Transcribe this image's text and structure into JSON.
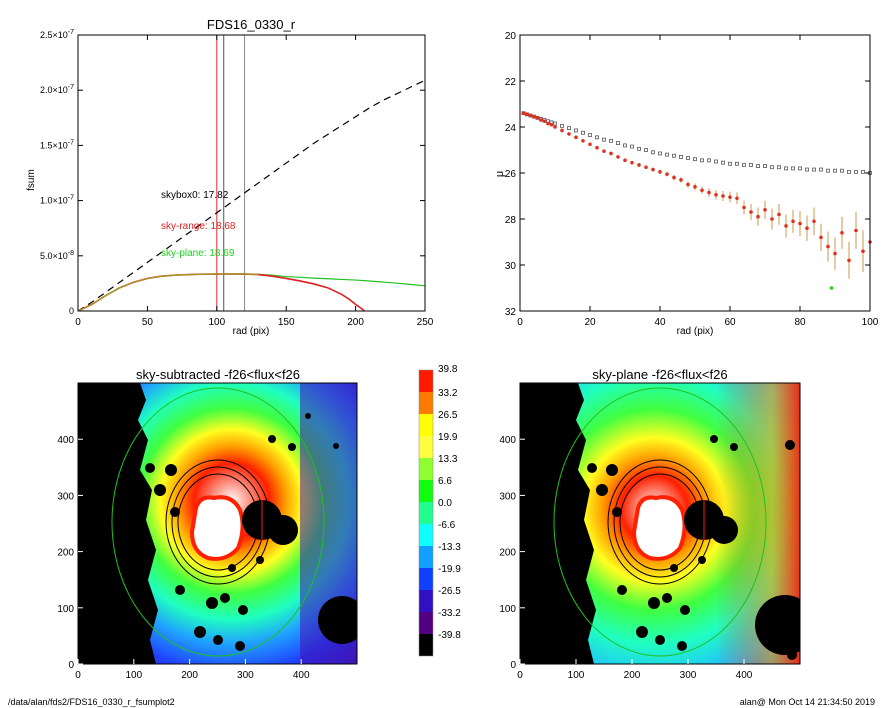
{
  "footer": {
    "path": "/data/alan/fds2/FDS16_0330_r_fsumplot2",
    "user_time": "alan@  Mon Oct 14 21:34:50 2019"
  },
  "chart_data": [
    {
      "type": "line",
      "title": "FDS16_0330_r",
      "xlabel": "rad (pix)",
      "ylabel": "fsum",
      "xlim": [
        0,
        250
      ],
      "ylim": [
        0,
        2.5e-07
      ],
      "xticks": [
        "0",
        "50",
        "100",
        "150",
        "200",
        "250"
      ],
      "yticks": [
        {
          "v": 0,
          "label": "0"
        },
        {
          "v": 5e-08,
          "label": "5.0×10",
          "exp": "-8"
        },
        {
          "v": 1e-07,
          "label": "1.0×10",
          "exp": "-7"
        },
        {
          "v": 1.5e-07,
          "label": "1.5×10",
          "exp": "-7"
        },
        {
          "v": 2e-07,
          "label": "2.0×10",
          "exp": "-7"
        },
        {
          "v": 2.5e-07,
          "label": "2.5×10",
          "exp": "-7"
        }
      ],
      "vlines": [
        {
          "x": 100,
          "color": "#e03030"
        },
        {
          "x": 105,
          "color": "#555555"
        },
        {
          "x": 120,
          "color": "#888888"
        }
      ],
      "annotations": [
        {
          "text": "skybox0: 17.82",
          "color": "#000000"
        },
        {
          "text": "sky-range: 18.68",
          "color": "#e02020"
        },
        {
          "text": "sky-plane: 18.69",
          "color": "#20d020"
        }
      ],
      "series": [
        {
          "color": "#000000",
          "style": "dashed",
          "x": [
            0,
            10,
            20,
            30,
            40,
            50,
            60,
            70,
            80,
            90,
            100,
            110,
            120,
            130,
            140,
            150,
            160,
            170,
            180,
            190,
            200,
            210,
            220,
            230,
            240,
            250
          ],
          "y": [
            0,
            8e-09,
            1.7e-08,
            2.6e-08,
            3.5e-08,
            4.4e-08,
            5.3e-08,
            6.2e-08,
            7.1e-08,
            8e-08,
            8.9e-08,
            9.8e-08,
            1.07e-07,
            1.16e-07,
            1.25e-07,
            1.34e-07,
            1.43e-07,
            1.52e-07,
            1.6e-07,
            1.68e-07,
            1.76e-07,
            1.84e-07,
            1.91e-07,
            1.97e-07,
            2.03e-07,
            2.09e-07
          ]
        },
        {
          "color": "#20c020",
          "style": "solid",
          "x": [
            0,
            10,
            20,
            30,
            40,
            50,
            60,
            70,
            80,
            90,
            100,
            110,
            120,
            130,
            140,
            150,
            160,
            170,
            180,
            190,
            200,
            210,
            220,
            230,
            240,
            250
          ],
          "y": [
            0,
            6e-09,
            1.4e-08,
            2.1e-08,
            2.6e-08,
            2.95e-08,
            3.15e-08,
            3.25e-08,
            3.3e-08,
            3.33e-08,
            3.35e-08,
            3.35e-08,
            3.35e-08,
            3.32e-08,
            3.24e-08,
            3.12e-08,
            3.05e-08,
            2.98e-08,
            2.92e-08,
            2.86e-08,
            2.8e-08,
            2.72e-08,
            2.62e-08,
            2.52e-08,
            2.4e-08,
            2.28e-08
          ]
        },
        {
          "color": "#e02020",
          "style": "solid",
          "x": [
            0,
            10,
            20,
            30,
            40,
            50,
            60,
            70,
            80,
            90,
            100,
            110,
            120,
            130,
            140,
            150,
            160,
            170,
            180,
            190,
            195,
            200,
            205,
            210
          ],
          "y": [
            0,
            6e-09,
            1.4e-08,
            2.1e-08,
            2.6e-08,
            2.95e-08,
            3.15e-08,
            3.25e-08,
            3.3e-08,
            3.33e-08,
            3.35e-08,
            3.35e-08,
            3.35e-08,
            3.3e-08,
            3.15e-08,
            2.95e-08,
            2.72e-08,
            2.45e-08,
            2.1e-08,
            1.5e-08,
            1.1e-08,
            6e-09,
            1.5e-09,
            -4e-09
          ]
        },
        {
          "color": "#a0a020",
          "style": "solid",
          "x": [
            0,
            10,
            20,
            30,
            40,
            50,
            60,
            70,
            80,
            90,
            100,
            110,
            120,
            130
          ],
          "y": [
            0,
            6e-09,
            1.4e-08,
            2.1e-08,
            2.6e-08,
            2.95e-08,
            3.15e-08,
            3.25e-08,
            3.3e-08,
            3.33e-08,
            3.35e-08,
            3.35e-08,
            3.35e-08,
            3.3e-08
          ]
        }
      ]
    },
    {
      "type": "scatter",
      "title": "",
      "xlabel": "rad (pix)",
      "ylabel": "μ",
      "xlim": [
        0,
        100
      ],
      "ylim": [
        32,
        20
      ],
      "xticks": [
        "0",
        "20",
        "40",
        "60",
        "80",
        "100"
      ],
      "yticks": [
        "20",
        "22",
        "24",
        "26",
        "28",
        "30",
        "32"
      ],
      "series": [
        {
          "marker": "open-square",
          "color": "#555555",
          "x": [
            1,
            2,
            3,
            4,
            5,
            6,
            7,
            8,
            9,
            10,
            12,
            14,
            16,
            18,
            20,
            22,
            24,
            26,
            28,
            30,
            32,
            34,
            36,
            38,
            40,
            42,
            44,
            46,
            48,
            50,
            52,
            54,
            56,
            58,
            60,
            62,
            64,
            66,
            68,
            70,
            72,
            74,
            76,
            78,
            80,
            82,
            84,
            86,
            88,
            90,
            92,
            94,
            96,
            98,
            100
          ],
          "y": [
            23.4,
            23.45,
            23.5,
            23.55,
            23.6,
            23.65,
            23.7,
            23.75,
            23.8,
            23.85,
            23.95,
            24.05,
            24.15,
            24.25,
            24.35,
            24.45,
            24.55,
            24.6,
            24.7,
            24.8,
            24.85,
            24.95,
            25.0,
            25.1,
            25.15,
            25.2,
            25.25,
            25.3,
            25.35,
            25.4,
            25.45,
            25.45,
            25.5,
            25.55,
            25.6,
            25.6,
            25.65,
            25.65,
            25.7,
            25.7,
            25.75,
            25.75,
            25.8,
            25.8,
            25.8,
            25.85,
            25.85,
            25.85,
            25.9,
            25.9,
            25.9,
            25.95,
            25.95,
            25.95,
            26.0
          ]
        },
        {
          "marker": "filled-circle",
          "color": "#e03020",
          "x": [
            1,
            2,
            3,
            4,
            5,
            6,
            7,
            8,
            9,
            10,
            12,
            14,
            16,
            18,
            20,
            22,
            24,
            26,
            28,
            30,
            32,
            34,
            36,
            38,
            40,
            42,
            44,
            46,
            48,
            50,
            52,
            54,
            56,
            58,
            60,
            62,
            64,
            66,
            68,
            70,
            72,
            74,
            76,
            78,
            80,
            82,
            84,
            86,
            88,
            90,
            92,
            94,
            96,
            98,
            100
          ],
          "y": [
            23.4,
            23.45,
            23.5,
            23.55,
            23.6,
            23.7,
            23.75,
            23.85,
            23.9,
            24.0,
            24.15,
            24.3,
            24.45,
            24.6,
            24.75,
            24.9,
            25.05,
            25.15,
            25.3,
            25.45,
            25.55,
            25.65,
            25.75,
            25.85,
            25.95,
            26.05,
            26.2,
            26.3,
            26.5,
            26.6,
            26.75,
            26.85,
            26.95,
            27.0,
            27.05,
            27.1,
            27.5,
            27.7,
            27.9,
            27.6,
            28.0,
            27.8,
            28.3,
            28.1,
            28.2,
            28.4,
            28.1,
            28.8,
            29.2,
            29.5,
            28.6,
            29.8,
            28.5,
            29.4,
            29.0
          ],
          "err": [
            0.05,
            0.05,
            0.05,
            0.05,
            0.05,
            0.05,
            0.05,
            0.05,
            0.05,
            0.05,
            0.05,
            0.05,
            0.05,
            0.05,
            0.05,
            0.05,
            0.06,
            0.06,
            0.06,
            0.07,
            0.07,
            0.08,
            0.08,
            0.09,
            0.1,
            0.1,
            0.12,
            0.12,
            0.14,
            0.15,
            0.16,
            0.18,
            0.2,
            0.22,
            0.24,
            0.26,
            0.3,
            0.35,
            0.4,
            0.4,
            0.45,
            0.45,
            0.5,
            0.5,
            0.55,
            0.55,
            0.6,
            0.6,
            0.65,
            0.7,
            0.7,
            0.8,
            0.8,
            0.9,
            0.9
          ]
        },
        {
          "marker": "filled-circle",
          "color": "#20d020",
          "x": [
            89
          ],
          "y": [
            31.0
          ]
        }
      ]
    },
    {
      "type": "heatmap",
      "title": "sky-subtracted -f26<flux<f26",
      "xlim": [
        0,
        500
      ],
      "ylim": [
        0,
        500
      ],
      "xticks": [
        "0",
        "100",
        "200",
        "300",
        "400"
      ],
      "yticks": [
        "0",
        "100",
        "200",
        "300",
        "400"
      ],
      "mask_color": "#000000"
    },
    {
      "type": "heatmap",
      "title": "sky-plane -f26<flux<f26",
      "xlim": [
        0,
        500
      ],
      "ylim": [
        0,
        500
      ],
      "xticks": [
        "0",
        "100",
        "200",
        "300",
        "400"
      ],
      "yticks": [
        "0",
        "100",
        "200",
        "300",
        "400"
      ],
      "mask_color": "#000000"
    }
  ],
  "colorbar": {
    "labels": [
      "39.8",
      "33.2",
      "26.5",
      "19.9",
      "13.3",
      "6.6",
      "0.0",
      "-6.6",
      "-13.3",
      "-19.9",
      "-26.5",
      "-33.2",
      "-39.8"
    ],
    "colors": [
      "#ff1a00",
      "#ff7a00",
      "#ffff00",
      "#ffff40",
      "#90ff30",
      "#10ff10",
      "#20ff90",
      "#10ffff",
      "#10a0ff",
      "#1040ff",
      "#3010c0",
      "#500080",
      "#000000"
    ]
  }
}
